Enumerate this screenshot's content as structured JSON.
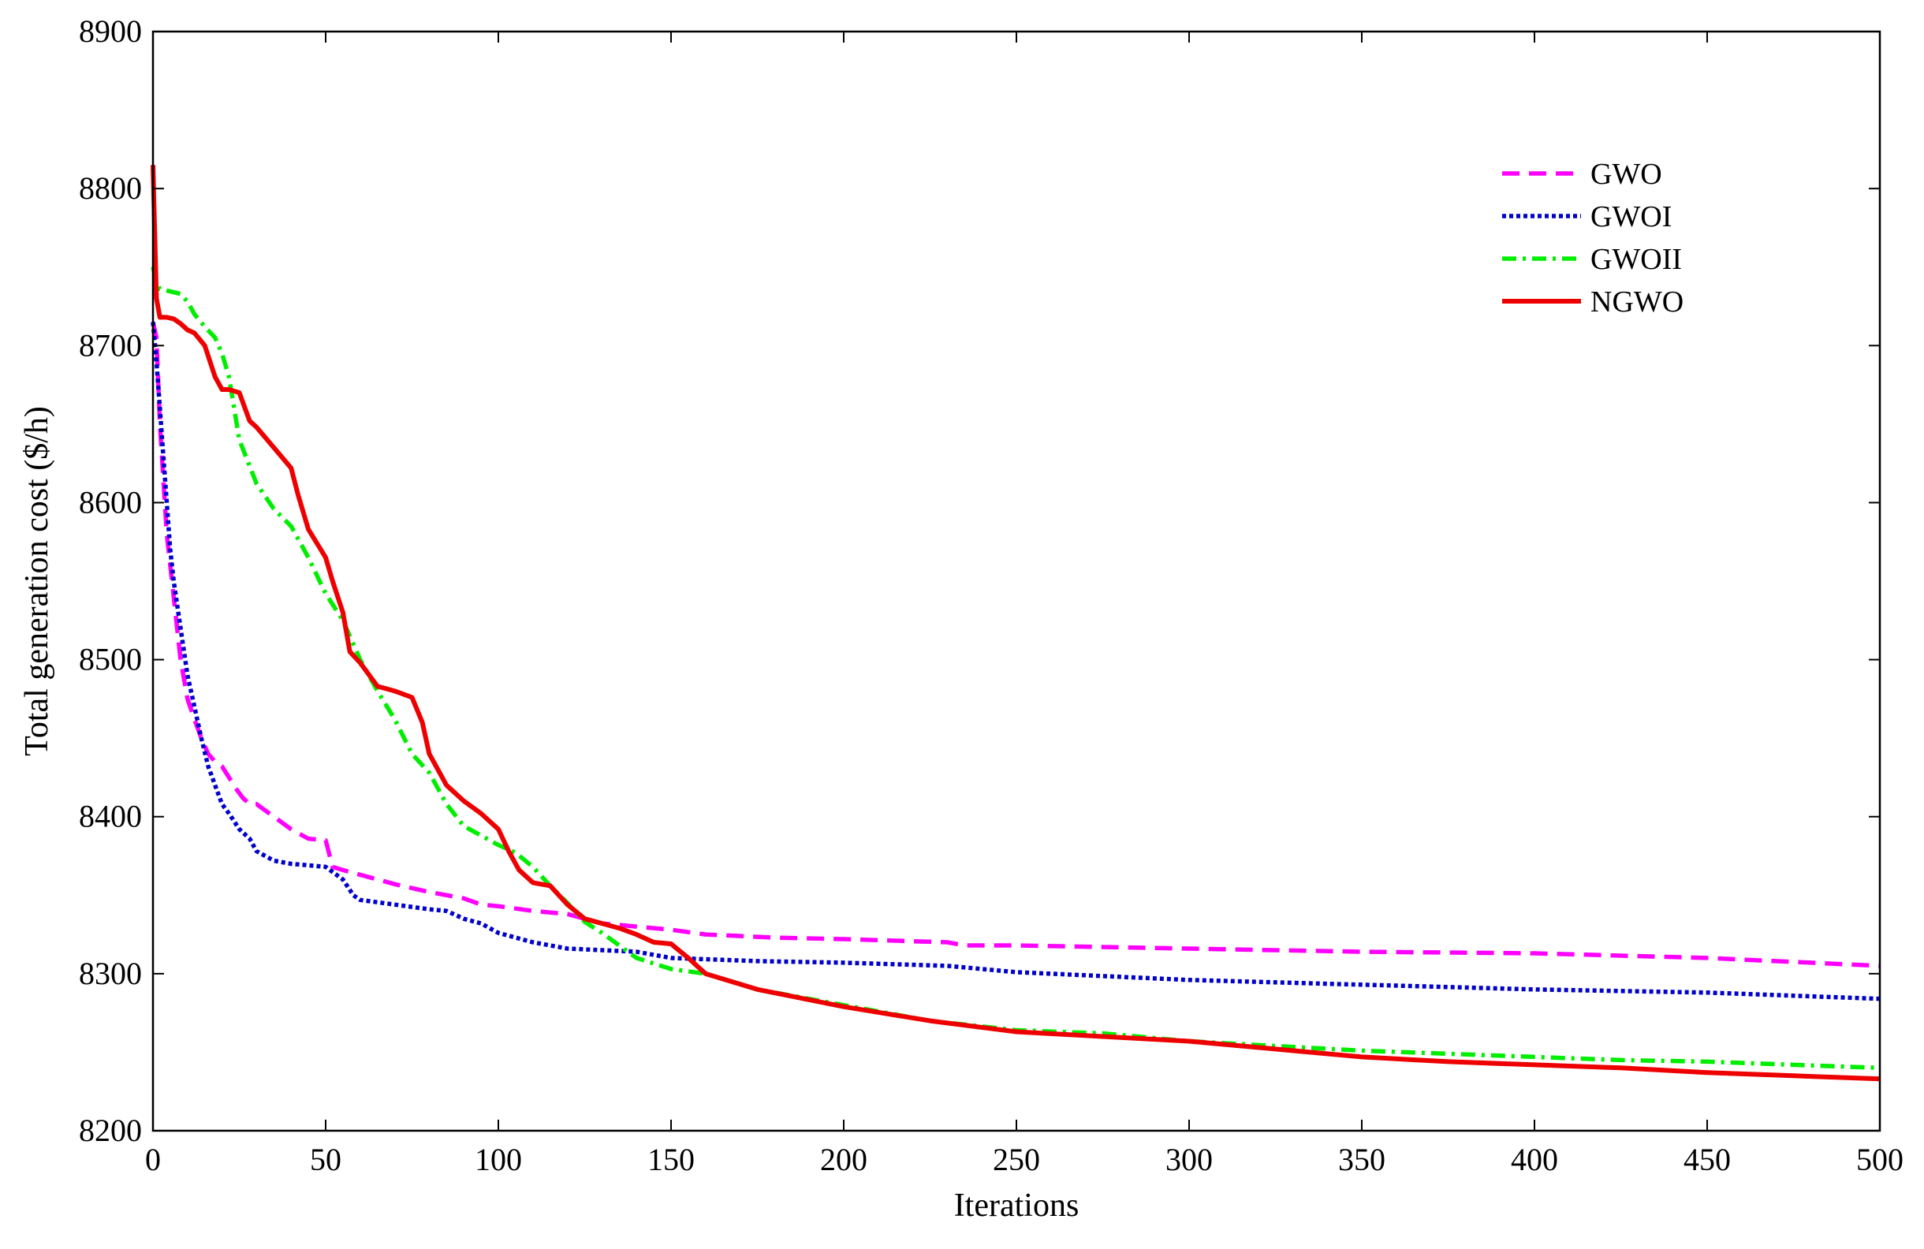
{
  "chart_data": {
    "type": "line",
    "title": "",
    "xlabel": "Iterations",
    "ylabel": "Total generation cost ($/h)",
    "xlim": [
      0,
      500
    ],
    "ylim": [
      8200,
      8900
    ],
    "xticks": [
      "0",
      "50",
      "100",
      "150",
      "200",
      "250",
      "300",
      "350",
      "400",
      "450",
      "500"
    ],
    "yticks": [
      "8200",
      "8300",
      "8400",
      "8500",
      "8600",
      "8700",
      "8800",
      "8900"
    ],
    "grid": false,
    "legend_position": "top-right",
    "series": [
      {
        "name": "GWO",
        "color": "#ff00ff",
        "style": "dashed",
        "x": [
          0,
          1,
          2,
          4,
          6,
          8,
          10,
          12,
          14,
          16,
          18,
          20,
          22,
          24,
          26,
          28,
          30,
          35,
          40,
          45,
          50,
          52,
          55,
          60,
          70,
          80,
          90,
          95,
          100,
          110,
          120,
          130,
          140,
          150,
          160,
          180,
          200,
          230,
          235,
          250,
          300,
          350,
          400,
          450,
          500
        ],
        "y": [
          8715,
          8705,
          8650,
          8580,
          8540,
          8500,
          8475,
          8462,
          8450,
          8440,
          8435,
          8432,
          8425,
          8418,
          8412,
          8408,
          8408,
          8400,
          8392,
          8386,
          8385,
          8368,
          8366,
          8363,
          8357,
          8352,
          8348,
          8344,
          8343,
          8340,
          8338,
          8332,
          8330,
          8328,
          8325,
          8323,
          8322,
          8320,
          8318,
          8318,
          8316,
          8314,
          8313,
          8310,
          8305
        ]
      },
      {
        "name": "GWOI",
        "color": "#0000cc",
        "style": "dotted",
        "x": [
          0,
          1,
          2,
          3,
          4,
          5,
          6,
          8,
          10,
          12,
          14,
          16,
          18,
          20,
          22,
          25,
          28,
          30,
          35,
          40,
          45,
          50,
          55,
          58,
          60,
          70,
          80,
          85,
          90,
          95,
          100,
          110,
          120,
          130,
          140,
          150,
          175,
          200,
          230,
          250,
          300,
          350,
          400,
          450,
          500
        ],
        "y": [
          8715,
          8690,
          8660,
          8630,
          8600,
          8570,
          8550,
          8520,
          8490,
          8470,
          8450,
          8432,
          8420,
          8408,
          8402,
          8392,
          8386,
          8378,
          8372,
          8370,
          8369,
          8368,
          8360,
          8350,
          8347,
          8344,
          8341,
          8340,
          8335,
          8332,
          8326,
          8320,
          8316,
          8315,
          8314,
          8310,
          8308,
          8307,
          8305,
          8301,
          8296,
          8293,
          8290,
          8288,
          8284
        ]
      },
      {
        "name": "GWOII",
        "color": "#00ee00",
        "style": "dash-dot",
        "x": [
          0,
          1,
          2,
          4,
          6,
          8,
          10,
          12,
          15,
          18,
          20,
          22,
          25,
          30,
          35,
          40,
          45,
          50,
          55,
          60,
          65,
          70,
          75,
          80,
          85,
          90,
          95,
          100,
          105,
          110,
          115,
          120,
          125,
          130,
          140,
          150,
          160,
          175,
          200,
          225,
          250,
          275,
          300,
          325,
          350,
          375,
          400,
          425,
          450,
          475,
          500
        ],
        "y": [
          8750,
          8740,
          8736,
          8735,
          8734,
          8733,
          8728,
          8720,
          8712,
          8705,
          8695,
          8680,
          8640,
          8612,
          8596,
          8585,
          8565,
          8542,
          8525,
          8500,
          8480,
          8462,
          8440,
          8428,
          8408,
          8394,
          8388,
          8382,
          8377,
          8368,
          8356,
          8345,
          8333,
          8326,
          8310,
          8303,
          8300,
          8290,
          8280,
          8270,
          8264,
          8262,
          8257,
          8254,
          8251,
          8249,
          8247,
          8245,
          8244,
          8242,
          8240
        ]
      },
      {
        "name": "NGWO",
        "color": "#ee0000",
        "style": "solid",
        "x": [
          0,
          1,
          2,
          4,
          6,
          8,
          10,
          12,
          15,
          18,
          20,
          22,
          25,
          28,
          30,
          35,
          40,
          42,
          45,
          50,
          52,
          55,
          57,
          60,
          65,
          70,
          75,
          78,
          80,
          85,
          90,
          95,
          100,
          103,
          106,
          110,
          115,
          120,
          125,
          130,
          135,
          140,
          145,
          150,
          155,
          160,
          175,
          200,
          225,
          250,
          275,
          300,
          325,
          350,
          375,
          400,
          425,
          450,
          475,
          500
        ],
        "y": [
          8815,
          8730,
          8718,
          8718,
          8717,
          8714,
          8710,
          8708,
          8700,
          8680,
          8672,
          8672,
          8670,
          8652,
          8648,
          8635,
          8622,
          8605,
          8583,
          8565,
          8550,
          8530,
          8505,
          8498,
          8483,
          8480,
          8476,
          8460,
          8440,
          8420,
          8410,
          8402,
          8392,
          8378,
          8366,
          8358,
          8356,
          8344,
          8335,
          8332,
          8329,
          8325,
          8320,
          8319,
          8310,
          8300,
          8290,
          8279,
          8270,
          8263,
          8260,
          8257,
          8252,
          8247,
          8244,
          8242,
          8240,
          8237,
          8235,
          8233
        ]
      }
    ]
  }
}
